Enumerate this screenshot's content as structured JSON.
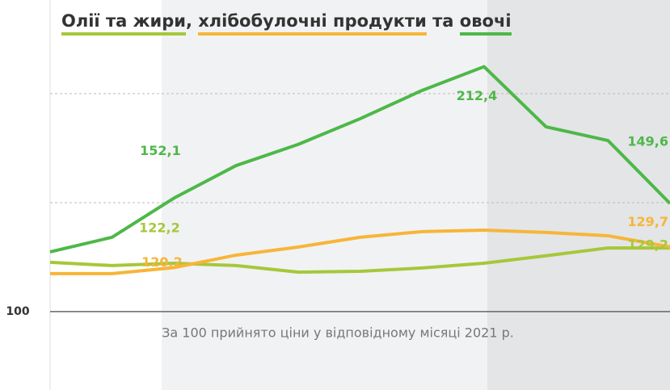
{
  "chart_data": {
    "type": "line",
    "title_joiners": [
      ", ",
      " та "
    ],
    "note": "За 100 прийнято ціни у відповідному місяці 2021 р.",
    "categories": [
      null,
      null,
      null,
      null,
      null,
      null,
      null,
      null,
      null,
      null,
      null
    ],
    "series": [
      {
        "name": "Олії та жири",
        "color": "#a5c83a",
        "values": [
          122.6,
          121.1,
          122.2,
          121.1,
          118.1,
          118.5,
          120.0,
          122.2,
          125.6,
          129.2,
          129.2
        ],
        "value_labels": [
          null,
          null,
          "122,2",
          null,
          null,
          null,
          null,
          null,
          null,
          null,
          "129,2"
        ]
      },
      {
        "name": "хлібобулочні продукти",
        "color": "#f7b538",
        "values": [
          117.4,
          117.4,
          120.2,
          125.9,
          129.6,
          134.1,
          136.7,
          137.4,
          136.3,
          134.8,
          129.7
        ],
        "value_labels": [
          null,
          null,
          "120,2",
          null,
          null,
          null,
          null,
          null,
          null,
          null,
          "129,7"
        ]
      },
      {
        "name": "овочі",
        "color": "#4db848",
        "values": [
          127.4,
          134.1,
          152.1,
          167.0,
          176.7,
          188.5,
          201.5,
          212.4,
          184.8,
          178.5,
          149.6
        ],
        "value_labels": [
          null,
          null,
          "152,1",
          null,
          null,
          null,
          null,
          "212,4",
          null,
          null,
          "149,6"
        ]
      }
    ],
    "ylim": [
      64,
      243
    ],
    "yticks": [
      100
    ],
    "grid": [
      150,
      200
    ]
  }
}
